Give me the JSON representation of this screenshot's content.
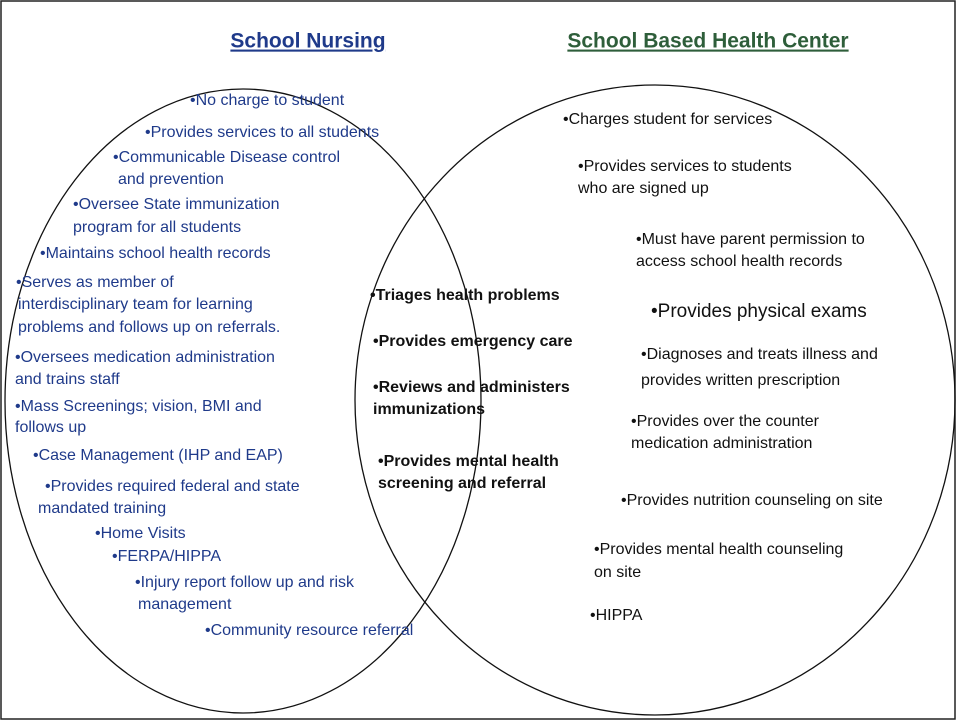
{
  "left": {
    "title": "School Nursing",
    "items": [
      [
        "•No charge to student"
      ],
      [
        "•Provides services to all students"
      ],
      [
        "•Communicable Disease control",
        "and prevention"
      ],
      [
        "•Oversee State immunization",
        "program for all students"
      ],
      [
        "•Maintains school health records"
      ],
      [
        "•Serves as member of",
        "interdisciplinary team for learning",
        "problems and follows up on referrals."
      ],
      [
        "•Oversees medication administration",
        "and trains staff"
      ],
      [
        "•Mass Screenings; vision, BMI and",
        "follows up"
      ],
      [
        "•Case Management (IHP and EAP)"
      ],
      [
        "•Provides required federal and state",
        "mandated training"
      ],
      [
        "•Home Visits"
      ],
      [
        "•FERPA/HIPPA"
      ],
      [
        "•Injury report follow up and risk",
        "management"
      ],
      [
        "•Community resource referral"
      ]
    ]
  },
  "middle": {
    "items": [
      [
        "•Triages health problems"
      ],
      [
        "•Provides emergency care"
      ],
      [
        "•Reviews and administers",
        "immunizations"
      ],
      [
        "•Provides mental health",
        "screening and referral"
      ]
    ]
  },
  "right": {
    "title": "School Based Health Center",
    "items": [
      [
        "•Charges student for services"
      ],
      [
        "•Provides services to students",
        "who are signed up"
      ],
      [
        "•Must have parent permission to",
        "access school health records"
      ],
      [
        "•Provides physical exams"
      ],
      [
        "•Diagnoses and treats illness and",
        "provides written prescription"
      ],
      [
        "•Provides over the counter",
        "medication administration"
      ],
      [
        "•Provides nutrition counseling on site"
      ],
      [
        "•Provides mental health counseling",
        "on site"
      ],
      [
        "•HIPPA"
      ]
    ]
  }
}
